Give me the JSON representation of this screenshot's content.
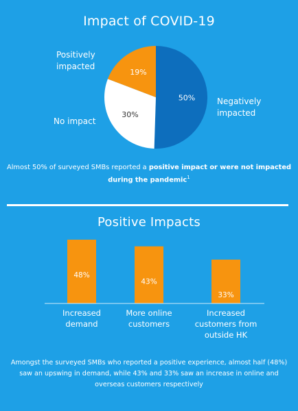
{
  "header": {
    "title": "Impact of COVID-19",
    "caption_pre": "Almost 50% of surveyed SMBs reported a ",
    "caption_bold": "positive impact or were not impacted during the pandemic",
    "caption_sup": "1"
  },
  "positive_section": {
    "title": "Positive Impacts",
    "caption": "Amongst the surveyed SMBs who reported a positive experience, almost half (48%) saw an upswing in demand, while 43% and 33% saw an increase in online and overseas customers respectively"
  },
  "chart_data": [
    {
      "type": "pie",
      "title": "Impact of COVID-19",
      "slices": [
        {
          "label": "Negatively impacted",
          "value": 50,
          "display": "50%",
          "color": "#0d6ebd"
        },
        {
          "label": "No impact",
          "value": 30,
          "display": "30%",
          "color": "#ffffff"
        },
        {
          "label": "Positively impacted",
          "value": 19,
          "display": "19%",
          "color": "#f7940f"
        }
      ]
    },
    {
      "type": "bar",
      "title": "Positive Impacts",
      "categories": [
        "Increased demand",
        "More online customers",
        "Increased customers from outside HK"
      ],
      "values": [
        48,
        43,
        33
      ],
      "value_labels": [
        "48%",
        "43%",
        "33%"
      ],
      "ylim": [
        0,
        50
      ],
      "grid": false,
      "bar_color": "#f7940f"
    }
  ],
  "labels": {
    "positively_line1": "Positively",
    "positively_line2": "impacted",
    "negatively_line1": "Negatively",
    "negatively_line2": "impacted",
    "no_impact": "No impact",
    "cat1_line1": "Increased",
    "cat1_line2": "demand",
    "cat2_line1": "More online",
    "cat2_line2": "customers",
    "cat3_line1": "Increased",
    "cat3_line2": "customers from",
    "cat3_line3": "outside HK"
  }
}
